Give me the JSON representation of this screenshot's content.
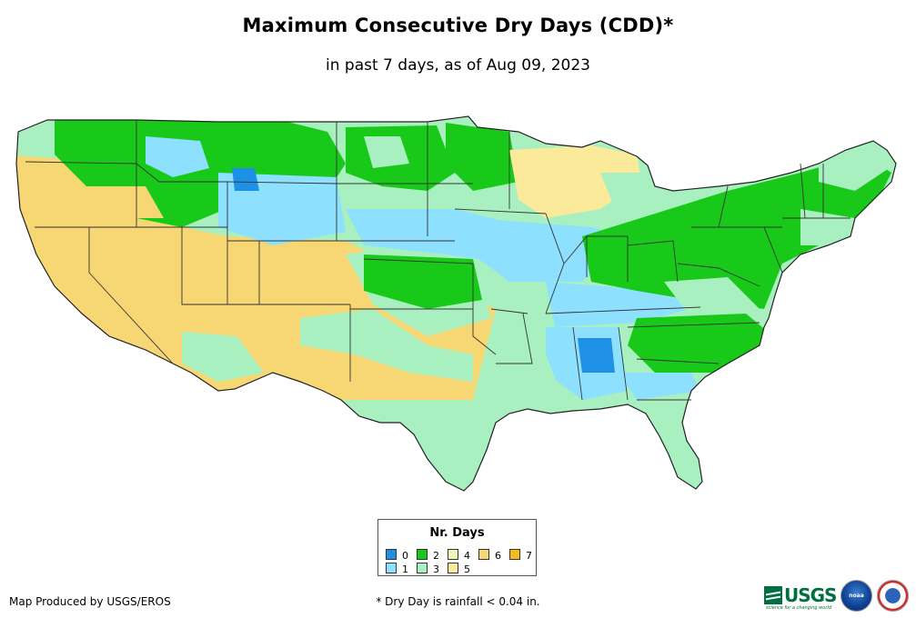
{
  "title": "Maximum Consecutive Dry Days (CDD)*",
  "subtitle": "in past 7 days, as of Aug 09, 2023",
  "legend": {
    "title": "Nr. Days",
    "items": [
      {
        "label": "0",
        "color": "#1e90e6"
      },
      {
        "label": "1",
        "color": "#8ee0ff"
      },
      {
        "label": "2",
        "color": "#19c919"
      },
      {
        "label": "3",
        "color": "#a8f0c0"
      },
      {
        "label": "4",
        "color": "#f3f5bd"
      },
      {
        "label": "5",
        "color": "#fbea9a"
      },
      {
        "label": "6",
        "color": "#f7d774"
      },
      {
        "label": "7",
        "color": "#f5bd1a"
      }
    ]
  },
  "footer": {
    "produced_by": "Map Produced by USGS/EROS",
    "footnote": "* Dry Day is rainfall < 0.04 in."
  },
  "logos": {
    "usgs_text": "USGS",
    "usgs_tagline": "science for a changing world",
    "noaa_text": "noaa"
  },
  "map_colors": {
    "water": "#ffffff",
    "state_line": "#333333",
    "d0": "#1e90e6",
    "d1": "#8ee0ff",
    "d2": "#19c919",
    "d3": "#a8f0c0",
    "d4": "#f3f5bd",
    "d5": "#fbea9a",
    "d6": "#f7d774",
    "d7": "#f5bd1a"
  }
}
